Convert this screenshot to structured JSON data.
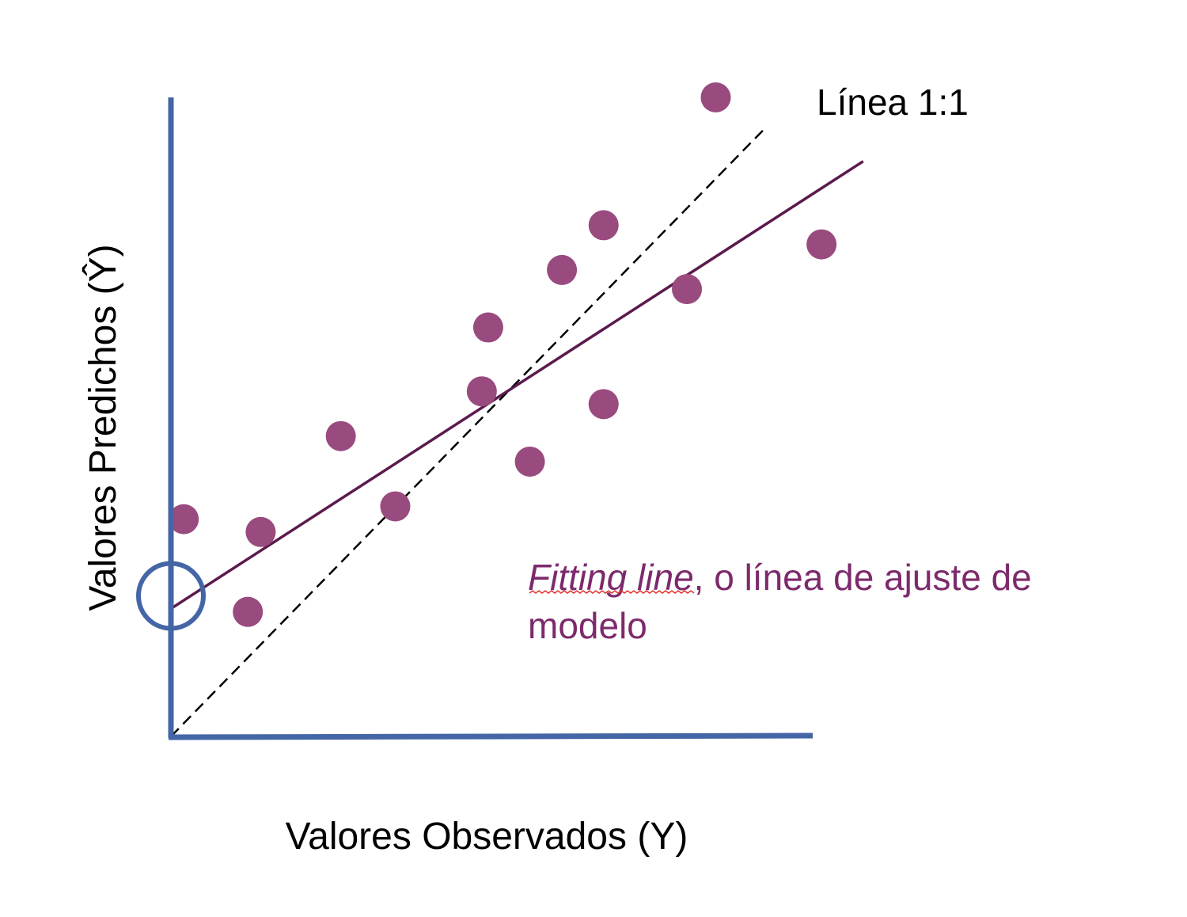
{
  "chart_data": {
    "type": "scatter",
    "title": "",
    "xlabel": "Valores Observados (Y)",
    "ylabel": "Valores Predichos (Ŷ)",
    "xlim": [
      0,
      100
    ],
    "ylim": [
      0,
      100
    ],
    "grid": false,
    "ticks": false,
    "points": [
      {
        "x": 2,
        "y": 34
      },
      {
        "x": 14,
        "y": 32
      },
      {
        "x": 12,
        "y": 19.5
      },
      {
        "x": 26.5,
        "y": 47
      },
      {
        "x": 35,
        "y": 36
      },
      {
        "x": 48.5,
        "y": 54
      },
      {
        "x": 49.5,
        "y": 64
      },
      {
        "x": 56,
        "y": 43
      },
      {
        "x": 61,
        "y": 73
      },
      {
        "x": 67.5,
        "y": 52
      },
      {
        "x": 67.5,
        "y": 80
      },
      {
        "x": 80.5,
        "y": 70
      },
      {
        "x": 85,
        "y": 100
      },
      {
        "x": 101.5,
        "y": 77
      }
    ],
    "fit_line": {
      "from": [
        0,
        20
      ],
      "to": [
        108,
        90
      ]
    },
    "identity_line": {
      "from": [
        0,
        0
      ],
      "to": [
        93,
        95.5
      ]
    },
    "intercept_marker": {
      "x": 0,
      "y": 22
    },
    "annotations": {
      "identity_label": "Línea 1:1",
      "fit_label_italic": "Fitting line",
      "fit_label_rest": ", o línea de ajuste de",
      "fit_label_line2": "modelo"
    },
    "colors": {
      "axis": "#4466a6",
      "points": "#994a7e",
      "fit_line": "#5b1a4e",
      "identity_line": "#000000",
      "annotation": "#7d2a6c",
      "marker": "#4466a6"
    }
  }
}
